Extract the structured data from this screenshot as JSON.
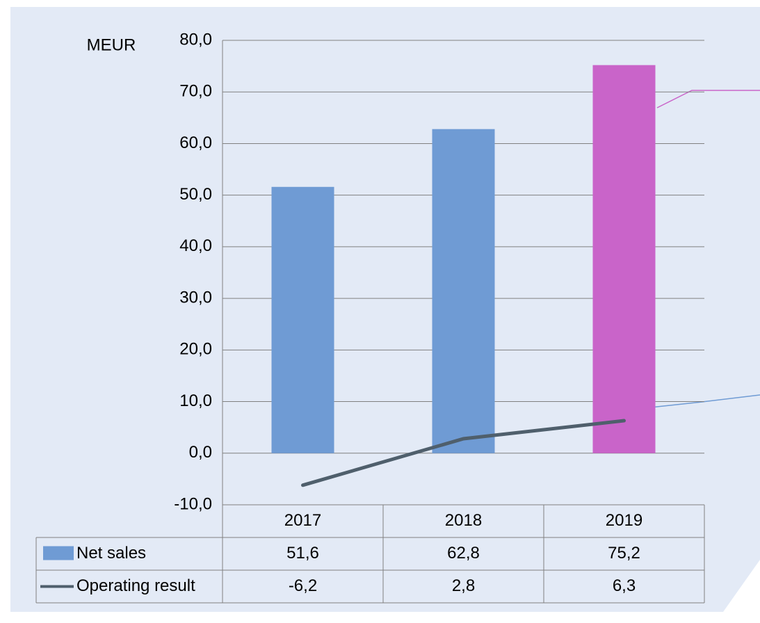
{
  "chart_data": {
    "type": "bar",
    "y_label": "MEUR",
    "categories": [
      "2017",
      "2018",
      "2019"
    ],
    "series": [
      {
        "name": "Net sales",
        "type": "bar",
        "color": "#6f9bd4",
        "colors": [
          "#6f9bd4",
          "#6f9bd4",
          "#c964c9"
        ],
        "values": [
          51.6,
          62.8,
          75.2
        ],
        "value_labels": [
          "51,6",
          "62,8",
          "75,2"
        ]
      },
      {
        "name": "Operating result",
        "type": "line",
        "color": "#4f5f6c",
        "values": [
          -6.2,
          2.8,
          6.3
        ],
        "value_labels": [
          "-6,2",
          "2,8",
          "6,3"
        ]
      }
    ],
    "ylim": [
      -10,
      80
    ],
    "yticks": [
      {
        "value": -10,
        "label": "-10,0"
      },
      {
        "value": 0,
        "label": "0,0"
      },
      {
        "value": 10,
        "label": "10,0"
      },
      {
        "value": 20,
        "label": "20,0"
      },
      {
        "value": 30,
        "label": "30,0"
      },
      {
        "value": 40,
        "label": "40,0"
      },
      {
        "value": 50,
        "label": "50,0"
      },
      {
        "value": 60,
        "label": "60,0"
      },
      {
        "value": 70,
        "label": "70,0"
      },
      {
        "value": 80,
        "label": "80,0"
      }
    ],
    "grid": true,
    "data_table": true
  }
}
